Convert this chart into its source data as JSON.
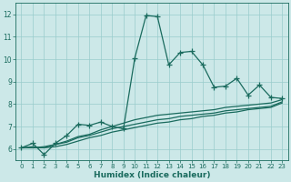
{
  "xlabel": "Humidex (Indice chaleur)",
  "bg_color": "#cce8e8",
  "grid_color": "#99cccc",
  "line_color": "#1a6b5e",
  "xlim": [
    -0.5,
    23.5
  ],
  "ylim": [
    5.5,
    12.5
  ],
  "yticks": [
    6,
    7,
    8,
    9,
    10,
    11,
    12
  ],
  "xticks": [
    0,
    1,
    2,
    3,
    4,
    5,
    6,
    7,
    8,
    9,
    10,
    11,
    12,
    13,
    14,
    15,
    16,
    17,
    18,
    19,
    20,
    21,
    22,
    23
  ],
  "series": [
    [
      6.05,
      6.25,
      5.75,
      6.25,
      6.6,
      7.1,
      7.05,
      7.2,
      7.0,
      6.9,
      10.05,
      11.95,
      11.9,
      9.75,
      10.3,
      10.35,
      9.75,
      8.75,
      8.8,
      9.15,
      8.4,
      8.85,
      8.3,
      8.25
    ],
    [
      6.05,
      6.1,
      6.05,
      6.2,
      6.35,
      6.55,
      6.65,
      6.85,
      7.0,
      7.15,
      7.3,
      7.4,
      7.5,
      7.55,
      7.6,
      7.65,
      7.7,
      7.75,
      7.85,
      7.9,
      7.95,
      8.0,
      8.05,
      8.2
    ],
    [
      6.05,
      6.05,
      6.1,
      6.2,
      6.3,
      6.5,
      6.6,
      6.75,
      6.9,
      7.0,
      7.1,
      7.2,
      7.3,
      7.35,
      7.45,
      7.5,
      7.55,
      7.6,
      7.7,
      7.75,
      7.8,
      7.85,
      7.9,
      8.1
    ],
    [
      6.05,
      6.05,
      6.05,
      6.1,
      6.2,
      6.35,
      6.5,
      6.6,
      6.75,
      6.85,
      6.95,
      7.05,
      7.15,
      7.2,
      7.3,
      7.35,
      7.45,
      7.5,
      7.6,
      7.65,
      7.75,
      7.8,
      7.85,
      8.05
    ]
  ],
  "xlabel_fontsize": 6.5,
  "tick_fontsize": 5.0,
  "ytick_fontsize": 5.5,
  "linewidth": 0.9,
  "markersize": 4.5
}
